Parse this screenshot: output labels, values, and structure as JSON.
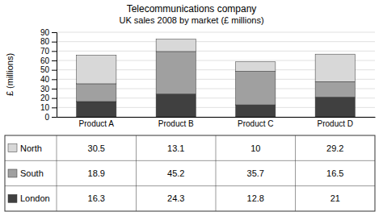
{
  "chart_data": {
    "type": "bar",
    "stacked": true,
    "title": "Telecommunications company",
    "subtitle": "UK sales 2008 by market (£ millions)",
    "categories": [
      "Product A",
      "Product B",
      "Product C",
      "Product D"
    ],
    "series": [
      {
        "name": "London",
        "color": "#404040",
        "values": [
          16.3,
          24.3,
          12.8,
          21.0
        ]
      },
      {
        "name": "South",
        "color": "#a0a0a0",
        "values": [
          18.9,
          45.2,
          35.7,
          16.5
        ]
      },
      {
        "name": "North",
        "color": "#d8d8d8",
        "values": [
          30.5,
          13.1,
          10.0,
          29.2
        ]
      }
    ],
    "ylabel": "£ (millions)",
    "ylim": [
      0,
      90
    ],
    "yticks": [
      0,
      10,
      20,
      30,
      40,
      50,
      60,
      70,
      80,
      90
    ],
    "grid": true
  }
}
